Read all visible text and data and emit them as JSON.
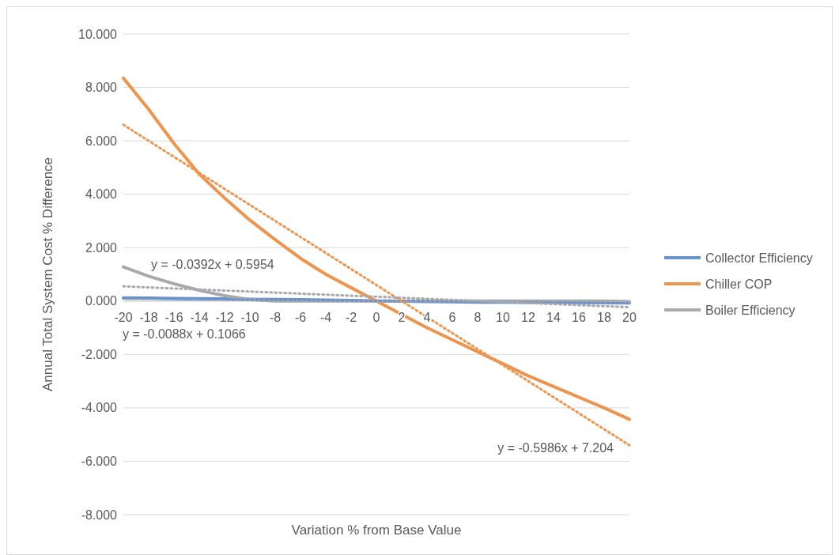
{
  "chart_data": {
    "type": "line",
    "xlabel": "Variation % from Base Value",
    "ylabel": "Annual Total System Cost  %  Difference",
    "categories": [
      "-20",
      "-18",
      "-16",
      "-14",
      "-12",
      "-10",
      "-8",
      "-6",
      "-4",
      "-2",
      "0",
      "2",
      "4",
      "6",
      "8",
      "10",
      "12",
      "14",
      "16",
      "18",
      "20"
    ],
    "series": [
      {
        "name": "Collector Efficiency",
        "color": "#6a93cb",
        "values": [
          0.12,
          0.11,
          0.1,
          0.09,
          0.08,
          0.07,
          0.06,
          0.05,
          0.04,
          0.02,
          0,
          -0.01,
          -0.02,
          -0.03,
          -0.04,
          -0.04,
          -0.05,
          -0.05,
          -0.06,
          -0.06,
          -0.07
        ]
      },
      {
        "name": "Chiller COP",
        "color": "#ed944f",
        "values": [
          8.35,
          7.18,
          5.9,
          4.75,
          3.86,
          3.03,
          2.3,
          1.6,
          1.0,
          0.5,
          0,
          -0.5,
          -1.0,
          -1.45,
          -1.9,
          -2.35,
          -2.8,
          -3.2,
          -3.6,
          -4.0,
          -4.43
        ]
      },
      {
        "name": "Boiler Efficiency",
        "color": "#a9a9ad",
        "values": [
          1.28,
          0.93,
          0.65,
          0.4,
          0.2,
          0.05,
          0,
          0,
          0,
          0,
          0,
          0,
          0,
          0,
          0,
          0,
          0,
          0,
          0,
          0,
          -0.02
        ]
      },
      {
        "color": "#6a93cb",
        "line_style": "dotted",
        "x": [
          "-20",
          "20"
        ],
        "values": [
          0.1,
          -0.08
        ]
      },
      {
        "color": "#ed944f",
        "line_style": "dotted",
        "x": [
          "-20",
          "20"
        ],
        "values": [
          6.6,
          -5.4
        ]
      },
      {
        "color": "#a9a9ad",
        "line_style": "dotted",
        "x": [
          "-20",
          "20"
        ],
        "values": [
          0.55,
          -0.23
        ]
      }
    ],
    "ylim": [
      -8,
      10
    ],
    "yticks": [
      {
        "value": -8,
        "label": "-8.000"
      },
      {
        "value": -6,
        "label": "-6.000"
      },
      {
        "value": -4,
        "label": "-4.000"
      },
      {
        "value": -2,
        "label": "-2.000"
      },
      {
        "value": 0,
        "label": "0.000"
      },
      {
        "value": 2,
        "label": "2.000"
      },
      {
        "value": 4,
        "label": "4.000"
      },
      {
        "value": 6,
        "label": "6.000"
      },
      {
        "value": 8,
        "label": "8.000"
      },
      {
        "value": 10,
        "label": "10.000"
      }
    ],
    "grid": "y",
    "legend": "right",
    "line_style": "solid",
    "annotations": [
      "y = -0.0392x + 0.5954",
      "y = -0.0088x + 0.1066",
      {
        "text": "y = -0.5986x + 7.204",
        "x": "20",
        "y": -5.5
      }
    ]
  }
}
